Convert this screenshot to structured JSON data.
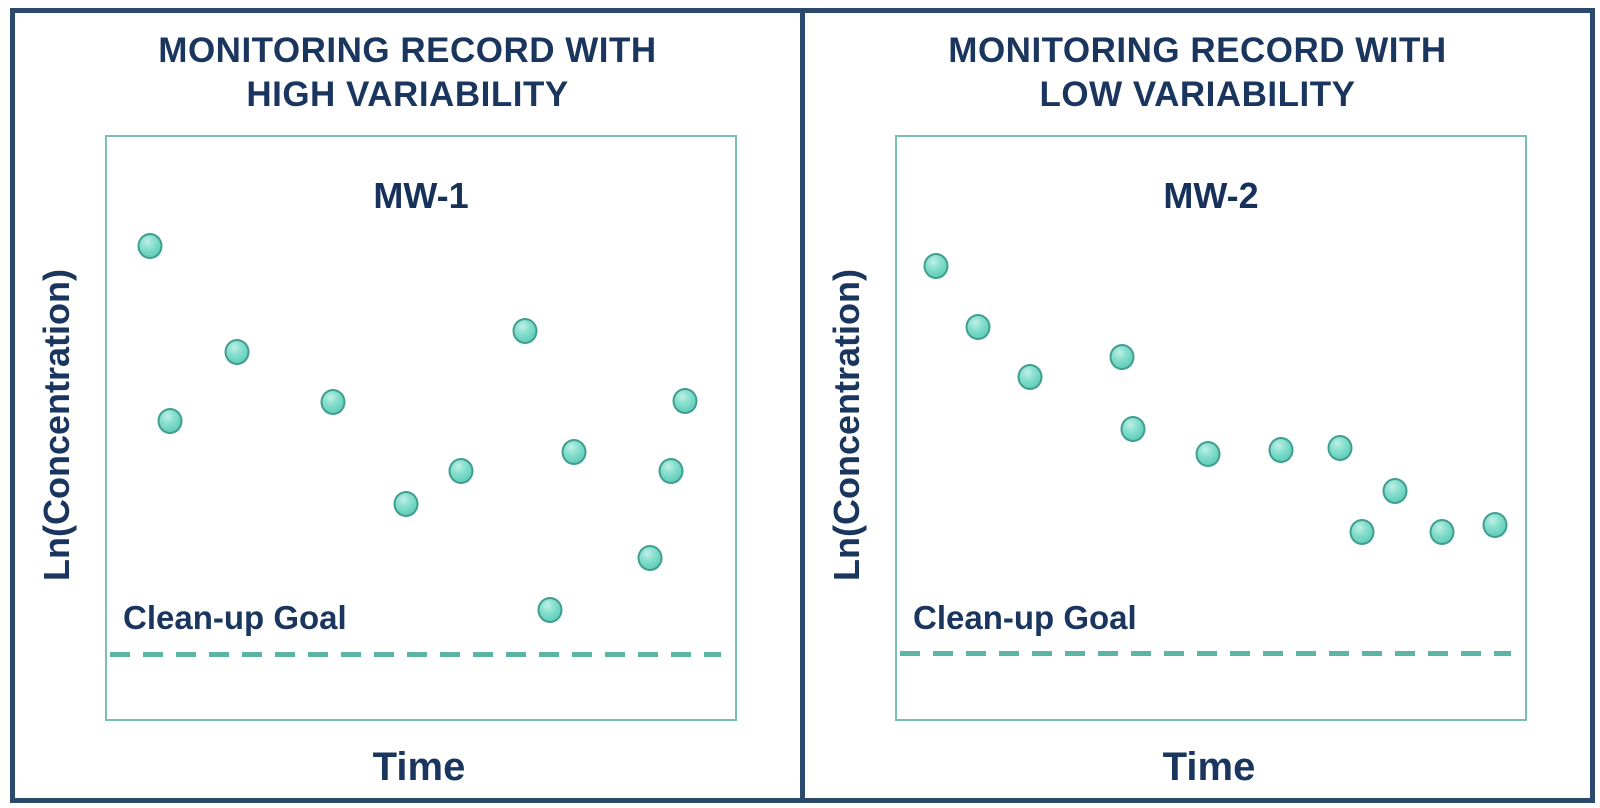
{
  "page": {
    "background": "#ffffff"
  },
  "colors": {
    "navy_text": "#1a365e",
    "frame_border": "#2b4a6b",
    "plot_border": "#79c0b2",
    "marker_fill": "#72d6c2",
    "marker_border": "#3f9e90",
    "dashed_line": "#5bb4a4",
    "page_bg": "#ffffff"
  },
  "chart_data": [
    {
      "type": "scatter",
      "title": "MONITORING RECORD WITH HIGH VARIABILITY",
      "title_line1": "MONITORING RECORD WITH",
      "title_line2": "HIGH VARIABILITY",
      "well_label": "MW-1",
      "xlabel": "Time",
      "ylabel": "Ln(Concentration)",
      "goal_label": "Clean-up Goal",
      "goal_line_y": 0.115,
      "x_range": [
        0,
        1
      ],
      "y_range": [
        0,
        1
      ],
      "axis_note": "qualitative axes, no tick labels; points normalized 0-1 (y from bottom)",
      "grid": false,
      "legend": false,
      "points": [
        {
          "x": 0.068,
          "y": 0.812
        },
        {
          "x": 0.1,
          "y": 0.512
        },
        {
          "x": 0.207,
          "y": 0.63
        },
        {
          "x": 0.36,
          "y": 0.545
        },
        {
          "x": 0.476,
          "y": 0.37
        },
        {
          "x": 0.564,
          "y": 0.426
        },
        {
          "x": 0.666,
          "y": 0.666
        },
        {
          "x": 0.705,
          "y": 0.187
        },
        {
          "x": 0.744,
          "y": 0.459
        },
        {
          "x": 0.865,
          "y": 0.276
        },
        {
          "x": 0.898,
          "y": 0.426
        },
        {
          "x": 0.92,
          "y": 0.546
        }
      ]
    },
    {
      "type": "scatter",
      "title": "MONITORING RECORD WITH LOW VARIABILITY",
      "title_line1": "MONITORING RECORD WITH",
      "title_line2": "LOW VARIABILITY",
      "well_label": "MW-2",
      "xlabel": "Time",
      "ylabel": "Ln(Concentration)",
      "goal_label": "Clean-up Goal",
      "goal_line_y": 0.117,
      "x_range": [
        0,
        1
      ],
      "y_range": [
        0,
        1
      ],
      "axis_note": "qualitative axes, no tick labels; points normalized 0-1 (y from bottom)",
      "grid": false,
      "legend": false,
      "points": [
        {
          "x": 0.062,
          "y": 0.778
        },
        {
          "x": 0.129,
          "y": 0.674
        },
        {
          "x": 0.211,
          "y": 0.588
        },
        {
          "x": 0.359,
          "y": 0.622
        },
        {
          "x": 0.375,
          "y": 0.498
        },
        {
          "x": 0.496,
          "y": 0.455
        },
        {
          "x": 0.611,
          "y": 0.462
        },
        {
          "x": 0.706,
          "y": 0.466
        },
        {
          "x": 0.741,
          "y": 0.321
        },
        {
          "x": 0.793,
          "y": 0.391
        },
        {
          "x": 0.868,
          "y": 0.321
        },
        {
          "x": 0.952,
          "y": 0.334
        }
      ]
    }
  ]
}
